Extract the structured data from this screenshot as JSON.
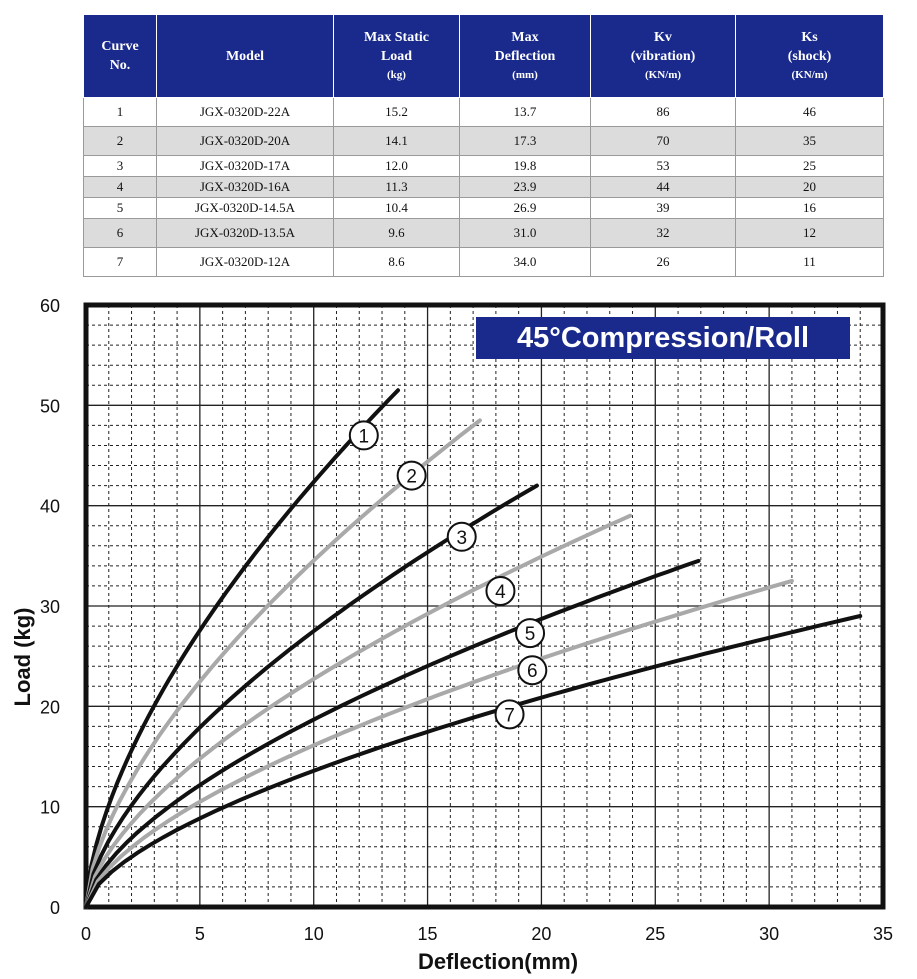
{
  "table": {
    "headers": [
      {
        "lines": [
          "Curve",
          "No."
        ],
        "unit": ""
      },
      {
        "lines": [
          "Model"
        ],
        "unit": ""
      },
      {
        "lines": [
          "Max Static",
          "Load"
        ],
        "unit": "(kg)"
      },
      {
        "lines": [
          "Max",
          "Deflection"
        ],
        "unit": "(mm)"
      },
      {
        "lines": [
          "Kv",
          "(vibration)"
        ],
        "unit": "(KN/m)"
      },
      {
        "lines": [
          "Ks",
          "(shock)"
        ],
        "unit": "(KN/m)"
      }
    ],
    "rows": [
      [
        "1",
        "JGX-0320D-22A",
        "15.2",
        "13.7",
        "86",
        "46"
      ],
      [
        "2",
        "JGX-0320D-20A",
        "14.1",
        "17.3",
        "70",
        "35"
      ],
      [
        "3",
        "JGX-0320D-17A",
        "12.0",
        "19.8",
        "53",
        "25"
      ],
      [
        "4",
        "JGX-0320D-16A",
        "11.3",
        "23.9",
        "44",
        "20"
      ],
      [
        "5",
        "JGX-0320D-14.5A",
        "10.4",
        "26.9",
        "39",
        "16"
      ],
      [
        "6",
        "JGX-0320D-13.5A",
        "9.6",
        "31.0",
        "32",
        "12"
      ],
      [
        "7",
        "JGX-0320D-12A",
        "8.6",
        "34.0",
        "26",
        "11"
      ]
    ]
  },
  "chart_data": {
    "type": "line",
    "title": "45°Compression/Roll",
    "xlabel": "Deflection(mm)",
    "ylabel": "Load (kg)",
    "xlim": [
      0,
      35
    ],
    "ylim": [
      0,
      60
    ],
    "xticks": [
      "0",
      "5",
      "10",
      "15",
      "20",
      "25",
      "30",
      "35"
    ],
    "yticks": [
      "0",
      "10",
      "20",
      "30",
      "40",
      "50",
      "60"
    ],
    "grid": true,
    "colors": {
      "dark": "#111111",
      "light": "#a9a9a9",
      "title_bg": "#1a2a8c"
    },
    "series": [
      {
        "label": "1",
        "color": "dark",
        "x": [
          0,
          13.7
        ],
        "y": [
          0,
          51.5
        ],
        "label_at": [
          12.2,
          47
        ]
      },
      {
        "label": "2",
        "color": "light",
        "x": [
          0,
          17.3
        ],
        "y": [
          0,
          48.5
        ],
        "label_at": [
          14.3,
          43
        ]
      },
      {
        "label": "3",
        "color": "dark",
        "x": [
          0,
          19.8
        ],
        "y": [
          0,
          42
        ],
        "label_at": [
          16.5,
          36.9
        ]
      },
      {
        "label": "4",
        "color": "light",
        "x": [
          0,
          23.9
        ],
        "y": [
          0,
          39
        ],
        "label_at": [
          18.2,
          31.5
        ]
      },
      {
        "label": "5",
        "color": "dark",
        "x": [
          0,
          26.9
        ],
        "y": [
          0,
          34.5
        ],
        "label_at": [
          19.5,
          27.3
        ]
      },
      {
        "label": "6",
        "color": "light",
        "x": [
          0,
          31.0
        ],
        "y": [
          0,
          32.5
        ],
        "label_at": [
          19.6,
          23.6
        ]
      },
      {
        "label": "7",
        "color": "dark",
        "x": [
          0,
          34.0
        ],
        "y": [
          0,
          29
        ],
        "label_at": [
          18.6,
          19.2
        ]
      }
    ]
  }
}
